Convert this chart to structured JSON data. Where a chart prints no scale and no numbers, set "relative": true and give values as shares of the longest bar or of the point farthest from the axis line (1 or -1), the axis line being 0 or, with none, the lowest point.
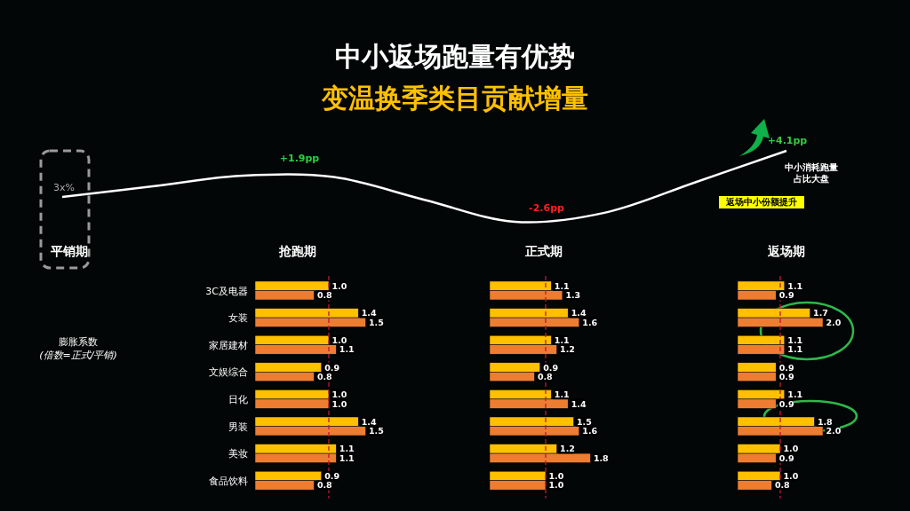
{
  "chart_data": [
    {
      "type": "line",
      "title": "中小返场跑量有优势",
      "subtitle": "变温换季类目贡献增量",
      "relative": true,
      "categories": [
        null,
        null,
        null,
        null,
        null,
        null,
        null,
        null,
        null
      ],
      "series": [
        {
          "color": "#ffffff",
          "values": [
            0.35,
            0.5,
            0.65,
            0.63,
            0.31,
            0,
            0.13,
            0.56,
            1
          ]
        }
      ],
      "annotations": [
        "3x%",
        "+1.9pp",
        "-2.6pp",
        "+4.1pp",
        "中小消耗跑量",
        "占比大盘",
        "返场中小份额提升",
        "平销期"
      ]
    },
    {
      "type": "bar",
      "orientation": "horizontal",
      "title": "抢跑期",
      "categories": [
        "3C及电器",
        "女装",
        "家居建材",
        "文娱综合",
        "日化",
        "男装",
        "美妆",
        "食品饮料"
      ],
      "series": [
        {
          "color": "#ffc000",
          "values": [
            1.0,
            1.4,
            1.0,
            0.9,
            1.0,
            1.4,
            1.1,
            0.9
          ],
          "value_labels": [
            "1.0",
            "1.4",
            "1.0",
            "0.9",
            "1.0",
            "1.4",
            "1.1",
            "0.9"
          ]
        },
        {
          "color": "#ed7d31",
          "values": [
            0.8,
            1.5,
            1.1,
            0.8,
            1.0,
            1.5,
            1.1,
            0.8
          ],
          "value_labels": [
            "0.8",
            "1.5",
            "1.1",
            "0.8",
            "1.0",
            "1.5",
            "1.1",
            "0.8"
          ]
        }
      ],
      "tick_labels": "y",
      "ref_lines": [
        {
          "axis": "x",
          "value": 1,
          "color": "#c0143c",
          "line_style": "dashed"
        }
      ],
      "annotations": [
        "膨胀系数",
        "(倍数=正式/平销)"
      ]
    },
    {
      "type": "bar",
      "orientation": "horizontal",
      "title": "正式期",
      "categories": [
        null,
        null,
        null,
        null,
        null,
        null,
        null,
        null
      ],
      "series": [
        {
          "color": "#ffc000",
          "values": [
            1.1,
            1.4,
            1.1,
            0.9,
            1.1,
            1.5,
            1.2,
            1.0
          ],
          "value_labels": [
            "1.1",
            "1.4",
            "1.1",
            "0.9",
            "1.1",
            "1.5",
            "1.2",
            "1.0"
          ]
        },
        {
          "color": "#ed7d31",
          "values": [
            1.3,
            1.6,
            1.2,
            0.8,
            1.4,
            1.6,
            1.8,
            1.0
          ],
          "value_labels": [
            "1.3",
            "1.6",
            "1.2",
            "0.8",
            "1.4",
            "1.6",
            "1.8",
            "1.0"
          ]
        }
      ],
      "tick_labels": false,
      "ref_lines": [
        {
          "axis": "x",
          "value": 1,
          "color": "#c0143c",
          "line_style": "dashed"
        }
      ]
    },
    {
      "type": "bar",
      "orientation": "horizontal",
      "title": "返场期",
      "categories": [
        null,
        null,
        null,
        null,
        null,
        null,
        null,
        null
      ],
      "series": [
        {
          "color": "#ffc000",
          "values": [
            1.1,
            1.7,
            1.1,
            0.9,
            1.1,
            1.8,
            1.0,
            1.0
          ],
          "value_labels": [
            "1.1",
            "1.7",
            "1.1",
            "0.9",
            "1.1",
            "1.8",
            "1.0",
            "1.0"
          ]
        },
        {
          "color": "#ed7d31",
          "values": [
            0.9,
            2.0,
            1.1,
            0.9,
            0.9,
            2.0,
            0.9,
            0.8
          ],
          "value_labels": [
            "0.9",
            "2.0",
            "1.1",
            "0.9",
            "0.9",
            "2.0",
            "0.9",
            "0.8"
          ]
        }
      ],
      "tick_labels": false,
      "ref_lines": [
        {
          "axis": "x",
          "value": 1,
          "color": "#c0143c",
          "line_style": "dashed"
        }
      ]
    }
  ]
}
